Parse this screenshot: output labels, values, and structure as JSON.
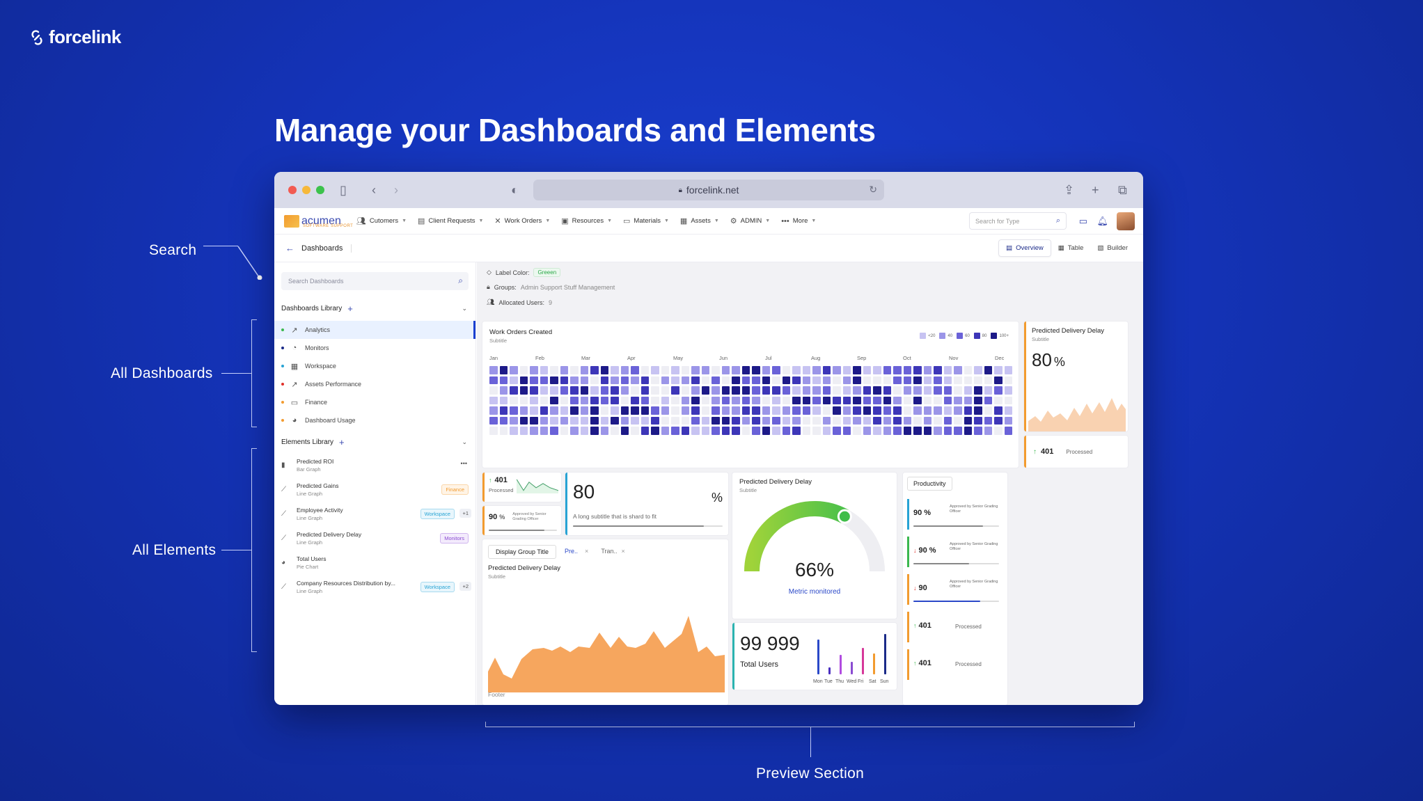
{
  "brand": {
    "name": "forcelink"
  },
  "headline": "Manage your Dashboards and Elements",
  "callouts": {
    "search": "Search",
    "all_dashboards": "All Dashboards",
    "all_elements": "All Elements",
    "preview": "Preview Section"
  },
  "browser": {
    "url": "forcelink.net"
  },
  "app": {
    "logo_text": "acumen",
    "logo_sub": "SOFTWARE SUPPORT",
    "nav": [
      "Cutomers",
      "Client Requests",
      "Work Orders",
      "Resources",
      "Materials",
      "Assets",
      "ADMIN",
      "More"
    ],
    "search_placeholder": "Search for Type",
    "breadcrumb": "Dashboards",
    "view_tabs": [
      "Overview",
      "Table",
      "Builder"
    ]
  },
  "sidebar": {
    "search_placeholder": "Search Dashboards",
    "dash_header": "Dashboards Library",
    "dashboards": [
      {
        "label": "Analytics",
        "dot": "#3bb84f"
      },
      {
        "label": "Monitors",
        "dot": "#1a2a88"
      },
      {
        "label": "Workspace",
        "dot": "#27a3d4"
      },
      {
        "label": "Assets Performance",
        "dot": "#e0302a"
      },
      {
        "label": "Finance",
        "dot": "#f29b2f"
      },
      {
        "label": "Dashboard Usage",
        "dot": "#f29b2f"
      }
    ],
    "el_header": "Elements Library",
    "elements": [
      {
        "title": "Predicted ROI",
        "type": "Bar Graph",
        "tag": "",
        "extra": ""
      },
      {
        "title": "Predicted Gains",
        "type": "Line Graph",
        "tag": "Finance",
        "extra": ""
      },
      {
        "title": "Employee Activity",
        "type": "Line Graph",
        "tag": "Workspace",
        "extra": "+1"
      },
      {
        "title": "Predicted Delivery Delay",
        "type": "Line Graph",
        "tag": "Monitors",
        "extra": ""
      },
      {
        "title": "Total Users",
        "type": "Pie Chart",
        "tag": "",
        "extra": ""
      },
      {
        "title": "Company Resources Distribution by...",
        "type": "Line Graph",
        "tag": "Workspace",
        "extra": "+2"
      }
    ]
  },
  "meta": {
    "label_color_label": "Label Color:",
    "label_color_value": "Greeen",
    "groups_label": "Groups:",
    "groups_value": "Admin  Support Stuff  Management",
    "users_label": "Allocated Users:",
    "users_value": "9"
  },
  "heatmap": {
    "title": "Work Orders Created",
    "subtitle": "Subtitle",
    "months": [
      "Jan",
      "Feb",
      "Mar",
      "Apr",
      "May",
      "Jun",
      "Jul",
      "Aug",
      "Sep",
      "Oct",
      "Nov",
      "Dec"
    ],
    "legend": [
      "<20",
      "40",
      "60",
      "80",
      "100+"
    ]
  },
  "delay_card": {
    "title": "Predicted Delivery Delay",
    "subtitle": "Subtitle",
    "value": "80",
    "unit": "%"
  },
  "processed_a": {
    "value": "401",
    "label": "Processed"
  },
  "kpi_small": {
    "value": "401",
    "label": "Processed",
    "pct": "90",
    "pct_unit": "%",
    "pct_label": "Approved by Senior Grading Officer"
  },
  "wide_kpi": {
    "value": "80",
    "unit": "%",
    "subtitle": "A long subtitle that is shard to fit"
  },
  "gauge": {
    "title": "Predicted Delivery Delay",
    "subtitle": "Subtitle",
    "value": "66%",
    "label": "Metric monitored",
    "fraction": 0.66
  },
  "group": {
    "tabs": [
      "Display Group Title",
      "Pre..",
      "Tran.."
    ],
    "title": "Predicted Delivery Delay",
    "subtitle": "Subtitle",
    "footer": "Footer"
  },
  "users": {
    "value": "99 999",
    "label": "Total Users",
    "days": [
      "Mon",
      "Tue",
      "Thu",
      "Wed",
      "Fri",
      "Sat",
      "Sun"
    ]
  },
  "productivity": {
    "title": "Productivity",
    "items": [
      {
        "value": "90 %",
        "arrow": "",
        "desc": "Approved by Senior Grading Officer",
        "color": "#27a3d4"
      },
      {
        "value": "90 %",
        "arrow": "↓",
        "desc": "Approved by Senior Grading Officer",
        "color": "#3bb84f"
      },
      {
        "value": "90",
        "arrow": "↓",
        "desc": "Approved by Senior Grading Officer",
        "color": "#f29b2f"
      },
      {
        "value": "401",
        "arrow": "↑",
        "desc": "Processed",
        "color": "#f29b2f"
      },
      {
        "value": "401",
        "arrow": "↑",
        "desc": "Processed",
        "color": "#f29b2f"
      }
    ]
  }
}
